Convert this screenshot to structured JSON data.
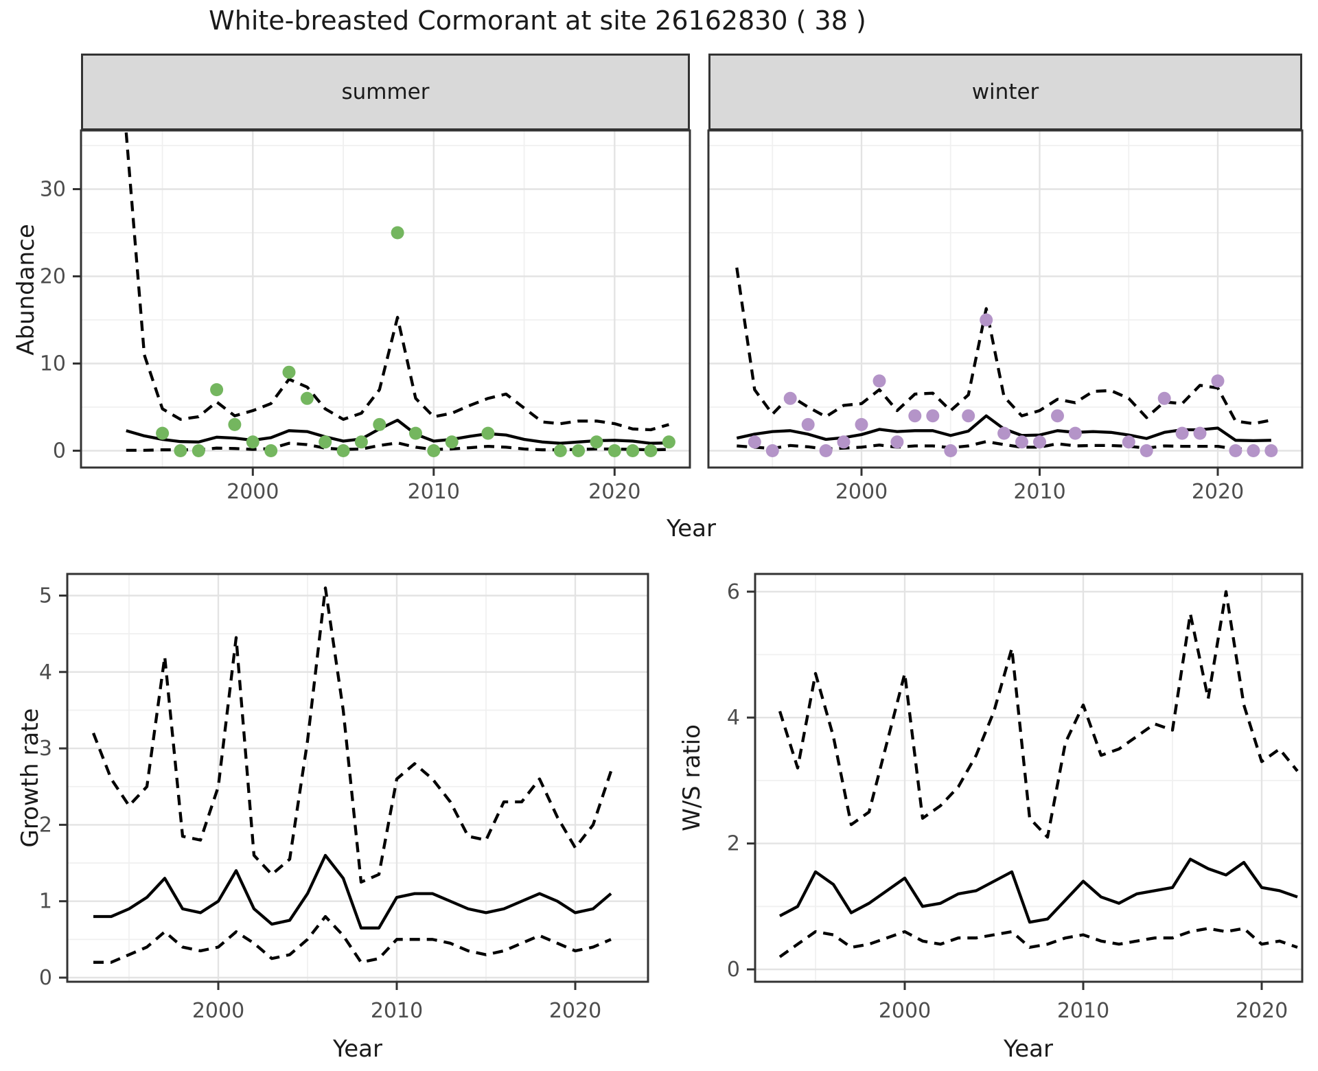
{
  "page": {
    "title": "White-breasted Cormorant at site 26162830 ( 38 )"
  },
  "labels": {
    "facet_summer": "summer",
    "facet_winter": "winter",
    "x_axis_top": "Year",
    "x_axis_bottom_left": "Year",
    "x_axis_bottom_right": "Year",
    "y_abundance": "Abundance",
    "y_growth": "Growth rate",
    "y_ws": "W/S ratio"
  },
  "colors": {
    "summer_point": "#74b65f",
    "winter_point": "#b494c8",
    "line": "#000000",
    "grid_major": "#e3e3e3",
    "grid_minor": "#f0f0f0",
    "panel_border": "#333333",
    "strip_bg": "#d9d9d9",
    "tick_text": "#4d4d4d",
    "background": "#ffffff"
  },
  "chart_data": [
    {
      "id": "abundance-summer",
      "type": "line",
      "facet": "summer",
      "title": "",
      "xlabel": "Year",
      "ylabel": "Abundance",
      "x_ticks": [
        2000,
        2010,
        2020
      ],
      "y_ticks": [
        0,
        10,
        20,
        30
      ],
      "ylim": [
        -2,
        37.5
      ],
      "x": [
        1993,
        1994,
        1995,
        1996,
        1997,
        1998,
        1999,
        2000,
        2001,
        2002,
        2003,
        2004,
        2005,
        2006,
        2007,
        2008,
        2009,
        2010,
        2011,
        2012,
        2013,
        2014,
        2015,
        2016,
        2017,
        2018,
        2019,
        2020,
        2021,
        2022,
        2023
      ],
      "points": [
        null,
        null,
        2,
        0,
        0,
        7,
        3,
        1,
        0,
        9,
        6,
        1,
        0,
        1,
        3,
        25,
        2,
        0,
        1,
        null,
        2,
        null,
        null,
        null,
        0,
        0,
        1,
        0,
        0,
        0,
        1
      ],
      "series": [
        {
          "name": "mean",
          "style": "solid",
          "values": [
            2.3,
            1.7,
            1.3,
            1.05,
            1.0,
            1.55,
            1.45,
            1.2,
            1.5,
            2.3,
            2.2,
            1.6,
            1.1,
            1.35,
            2.5,
            3.5,
            1.9,
            1.1,
            1.3,
            1.65,
            1.95,
            1.8,
            1.3,
            1.0,
            0.85,
            1.0,
            1.15,
            1.2,
            1.1,
            0.85,
            0.9
          ]
        },
        {
          "name": "upper95",
          "style": "dashed",
          "values": [
            36.5,
            11,
            4.8,
            3.6,
            3.9,
            5.6,
            4.0,
            4.6,
            5.4,
            8.2,
            7.3,
            4.8,
            3.6,
            4.3,
            7.0,
            15.3,
            6.0,
            3.9,
            4.3,
            5.2,
            6.0,
            6.5,
            4.9,
            3.3,
            3.1,
            3.4,
            3.4,
            3.1,
            2.5,
            2.4,
            3.0
          ]
        },
        {
          "name": "lower95",
          "style": "dashed",
          "values": [
            0.05,
            0.05,
            0.1,
            0.1,
            0.1,
            0.3,
            0.25,
            0.15,
            0.25,
            0.85,
            0.7,
            0.3,
            0.15,
            0.2,
            0.6,
            0.9,
            0.4,
            0.15,
            0.2,
            0.35,
            0.5,
            0.4,
            0.2,
            0.1,
            0.1,
            0.15,
            0.2,
            0.2,
            0.15,
            0.1,
            0.15
          ]
        }
      ]
    },
    {
      "id": "abundance-winter",
      "type": "line",
      "facet": "winter",
      "title": "",
      "xlabel": "Year",
      "ylabel": "Abundance",
      "x_ticks": [
        2000,
        2010,
        2020
      ],
      "y_ticks": [
        0,
        10,
        20,
        30
      ],
      "ylim": [
        -2,
        37.5
      ],
      "x": [
        1993,
        1994,
        1995,
        1996,
        1997,
        1998,
        1999,
        2000,
        2001,
        2002,
        2003,
        2004,
        2005,
        2006,
        2007,
        2008,
        2009,
        2010,
        2011,
        2012,
        2013,
        2014,
        2015,
        2016,
        2017,
        2018,
        2019,
        2020,
        2021,
        2022,
        2023
      ],
      "points": [
        null,
        1,
        0,
        6,
        3,
        0,
        1,
        3,
        8,
        1,
        4,
        4,
        0,
        4,
        15,
        2,
        1,
        1,
        4,
        2,
        null,
        null,
        1,
        0,
        6,
        2,
        2,
        8,
        0,
        0,
        0
      ],
      "series": [
        {
          "name": "mean",
          "style": "solid",
          "values": [
            1.45,
            1.9,
            2.2,
            2.3,
            1.9,
            1.3,
            1.5,
            1.85,
            2.45,
            2.2,
            2.3,
            2.3,
            1.75,
            2.25,
            4.0,
            2.5,
            1.75,
            1.8,
            2.3,
            2.1,
            2.2,
            2.1,
            1.8,
            1.4,
            2.1,
            2.4,
            2.4,
            2.6,
            1.2,
            1.15,
            1.2
          ]
        },
        {
          "name": "upper95",
          "style": "dashed",
          "values": [
            21,
            7,
            4.2,
            6.3,
            5.0,
            3.9,
            5.2,
            5.4,
            7.0,
            4.6,
            6.5,
            6.6,
            4.6,
            6.4,
            16.3,
            6.2,
            4.0,
            4.6,
            5.9,
            5.5,
            6.8,
            6.9,
            6.0,
            3.8,
            5.6,
            5.4,
            7.5,
            7.2,
            3.4,
            3.1,
            3.5
          ]
        },
        {
          "name": "lower95",
          "style": "dashed",
          "values": [
            0.55,
            0.4,
            0.25,
            0.6,
            0.45,
            0.2,
            0.3,
            0.4,
            0.65,
            0.4,
            0.55,
            0.55,
            0.35,
            0.55,
            1.05,
            0.7,
            0.4,
            0.4,
            0.8,
            0.55,
            0.6,
            0.6,
            0.5,
            0.3,
            0.55,
            0.5,
            0.5,
            0.5,
            0.2,
            0.2,
            0.3
          ]
        }
      ]
    },
    {
      "id": "growth-rate",
      "type": "line",
      "facet": null,
      "title": "",
      "xlabel": "Year",
      "ylabel": "Growth rate",
      "x_ticks": [
        2000,
        2010,
        2020
      ],
      "y_ticks": [
        0,
        1,
        2,
        3,
        4,
        5
      ],
      "ylim": [
        -0.05,
        5.28
      ],
      "x": [
        1993,
        1994,
        1995,
        1996,
        1997,
        1998,
        1999,
        2000,
        2001,
        2002,
        2003,
        2004,
        2005,
        2006,
        2007,
        2008,
        2009,
        2010,
        2011,
        2012,
        2013,
        2014,
        2015,
        2016,
        2017,
        2018,
        2019,
        2020,
        2021,
        2022
      ],
      "points": null,
      "series": [
        {
          "name": "mean",
          "style": "solid",
          "values": [
            0.8,
            0.8,
            0.9,
            1.05,
            1.3,
            0.9,
            0.85,
            1.0,
            1.4,
            0.9,
            0.7,
            0.75,
            1.1,
            1.6,
            1.3,
            0.65,
            0.65,
            1.05,
            1.1,
            1.1,
            1.0,
            0.9,
            0.85,
            0.9,
            1.0,
            1.1,
            1.0,
            0.85,
            0.9,
            1.1
          ]
        },
        {
          "name": "upper95",
          "style": "dashed",
          "values": [
            3.2,
            2.6,
            2.25,
            2.5,
            4.2,
            1.85,
            1.8,
            2.5,
            4.45,
            1.6,
            1.35,
            1.55,
            3.1,
            5.1,
            3.5,
            1.25,
            1.35,
            2.6,
            2.8,
            2.6,
            2.3,
            1.85,
            1.8,
            2.3,
            2.3,
            2.6,
            2.1,
            1.7,
            2.0,
            2.7
          ]
        },
        {
          "name": "lower95",
          "style": "dashed",
          "values": [
            0.2,
            0.2,
            0.3,
            0.4,
            0.6,
            0.4,
            0.35,
            0.4,
            0.6,
            0.45,
            0.25,
            0.3,
            0.5,
            0.8,
            0.55,
            0.2,
            0.25,
            0.5,
            0.5,
            0.5,
            0.45,
            0.35,
            0.3,
            0.35,
            0.45,
            0.55,
            0.45,
            0.35,
            0.4,
            0.5
          ]
        }
      ]
    },
    {
      "id": "ws-ratio",
      "type": "line",
      "facet": null,
      "title": "",
      "xlabel": "Year",
      "ylabel": "W/S ratio",
      "x_ticks": [
        2000,
        2010,
        2020
      ],
      "y_ticks": [
        0,
        2,
        4,
        6
      ],
      "ylim": [
        -0.1,
        6.28
      ],
      "x": [
        1993,
        1994,
        1995,
        1996,
        1997,
        1998,
        1999,
        2000,
        2001,
        2002,
        2003,
        2004,
        2005,
        2006,
        2007,
        2008,
        2009,
        2010,
        2011,
        2012,
        2013,
        2014,
        2015,
        2016,
        2017,
        2018,
        2019,
        2020,
        2021,
        2022
      ],
      "points": null,
      "series": [
        {
          "name": "mean",
          "style": "solid",
          "values": [
            0.85,
            1.0,
            1.55,
            1.35,
            0.9,
            1.05,
            1.25,
            1.45,
            1.0,
            1.05,
            1.2,
            1.25,
            1.4,
            1.55,
            0.75,
            0.8,
            1.1,
            1.4,
            1.15,
            1.05,
            1.2,
            1.25,
            1.3,
            1.75,
            1.6,
            1.5,
            1.7,
            1.3,
            1.25,
            1.15
          ]
        },
        {
          "name": "upper95",
          "style": "dashed",
          "values": [
            4.1,
            3.2,
            4.7,
            3.7,
            2.3,
            2.5,
            3.6,
            4.7,
            2.4,
            2.6,
            2.9,
            3.4,
            4.1,
            5.1,
            2.4,
            2.1,
            3.6,
            4.2,
            3.4,
            3.5,
            3.7,
            3.9,
            3.8,
            5.65,
            4.3,
            6.0,
            4.2,
            3.3,
            3.5,
            3.15
          ]
        },
        {
          "name": "lower95",
          "style": "dashed",
          "values": [
            0.2,
            0.4,
            0.6,
            0.55,
            0.35,
            0.4,
            0.5,
            0.6,
            0.45,
            0.4,
            0.5,
            0.5,
            0.55,
            0.6,
            0.35,
            0.4,
            0.5,
            0.55,
            0.45,
            0.4,
            0.45,
            0.5,
            0.5,
            0.6,
            0.65,
            0.6,
            0.65,
            0.4,
            0.45,
            0.35
          ]
        }
      ]
    }
  ]
}
